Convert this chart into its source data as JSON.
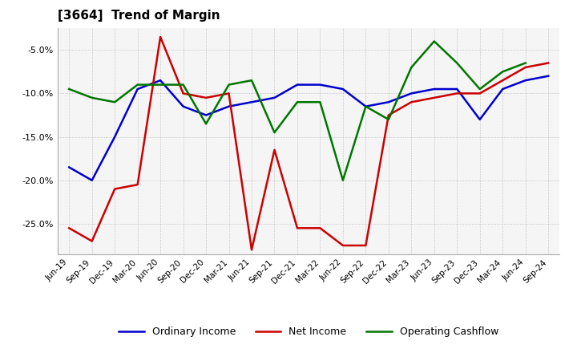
{
  "title": "[3664]  Trend of Margin",
  "x_labels": [
    "Jun-19",
    "Sep-19",
    "Dec-19",
    "Mar-20",
    "Jun-20",
    "Sep-20",
    "Dec-20",
    "Mar-21",
    "Jun-21",
    "Sep-21",
    "Dec-21",
    "Mar-22",
    "Jun-22",
    "Sep-22",
    "Dec-22",
    "Mar-23",
    "Jun-23",
    "Sep-23",
    "Dec-23",
    "Mar-24",
    "Jun-24",
    "Sep-24"
  ],
  "ordinary_income": [
    -18.5,
    -20.0,
    -15.0,
    -9.5,
    -8.5,
    -11.5,
    -12.5,
    -11.5,
    -11.0,
    -10.5,
    -9.0,
    -9.0,
    -9.5,
    -11.5,
    -11.0,
    -10.0,
    -9.5,
    -9.5,
    -13.0,
    -9.5,
    -8.5,
    -8.0
  ],
  "net_income": [
    -25.5,
    -27.0,
    -21.0,
    -20.5,
    -3.5,
    -10.0,
    -10.5,
    -10.0,
    -28.0,
    -16.5,
    -25.5,
    -25.5,
    -27.5,
    -27.5,
    -12.5,
    -11.0,
    -10.5,
    -10.0,
    -10.0,
    -8.5,
    -7.0,
    -6.5
  ],
  "operating_cashflow": [
    -9.5,
    -10.5,
    -11.0,
    -9.0,
    -9.0,
    -9.0,
    -13.5,
    -9.0,
    -8.5,
    -14.5,
    -11.0,
    -11.0,
    -20.0,
    -11.5,
    -13.0,
    -7.0,
    -4.0,
    -6.5,
    -9.5,
    -7.5,
    -6.5,
    null
  ],
  "ylim": [
    -28.5,
    -2.5
  ],
  "yticks": [
    -25.0,
    -20.0,
    -15.0,
    -10.0,
    -5.0
  ],
  "line_colors": {
    "ordinary_income": "#0000cc",
    "net_income": "#cc0000",
    "operating_cashflow": "#007700"
  },
  "line_width": 1.8,
  "background_color": "#ffffff",
  "plot_bg_color": "#f5f5f5",
  "grid_color": "#999999",
  "legend_labels": [
    "Ordinary Income",
    "Net Income",
    "Operating Cashflow"
  ]
}
